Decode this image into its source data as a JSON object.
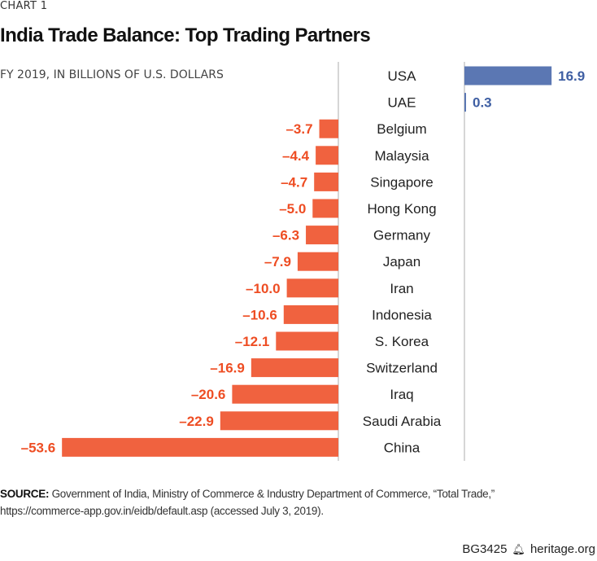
{
  "header": {
    "kicker": "CHART 1",
    "title": "India Trade Balance: Top Trading Partners",
    "subtitle": "FY 2019, IN BILLIONS OF U.S. DOLLARS"
  },
  "chart_data": {
    "type": "bar",
    "orientation": "horizontal",
    "title": "India Trade Balance: Top Trading Partners",
    "subtitle": "FY 2019, IN BILLIONS OF U.S. DOLLARS",
    "xlabel": "",
    "ylabel": "",
    "grid": false,
    "categories": [
      "USA",
      "UAE",
      "Belgium",
      "Malaysia",
      "Singapore",
      "Hong Kong",
      "Germany",
      "Japan",
      "Iran",
      "Indonesia",
      "S. Korea",
      "Switzerland",
      "Iraq",
      "Saudi Arabia",
      "China"
    ],
    "values": [
      16.9,
      0.3,
      -3.7,
      -4.4,
      -4.7,
      -5.0,
      -6.3,
      -7.9,
      -10.0,
      -10.6,
      -12.1,
      -16.9,
      -20.6,
      -22.9,
      -53.6
    ],
    "labels": [
      "16.9",
      "0.3",
      "–3.7",
      "–4.4",
      "–4.7",
      "–5.0",
      "–6.3",
      "–7.9",
      "–10.0",
      "–10.6",
      "–12.1",
      "–16.9",
      "–20.6",
      "–22.9",
      "–53.6"
    ],
    "colors": {
      "positive": "#5b77b3",
      "negative": "#f0623f",
      "positive_label": "#3f5fa3",
      "negative_label": "#ee4d23",
      "axis": "#bbbbbb"
    }
  },
  "source": {
    "label": "SOURCE:",
    "text": " Government of India, Ministry of Commerce & Industry Department of Commerce, “Total Trade,” https://commerce-app.gov.in/eidb/default.asp (accessed July 3, 2019)."
  },
  "footer": {
    "code": "BG3425",
    "logo_icon": "liberty-bell-icon",
    "site": "heritage.org"
  }
}
